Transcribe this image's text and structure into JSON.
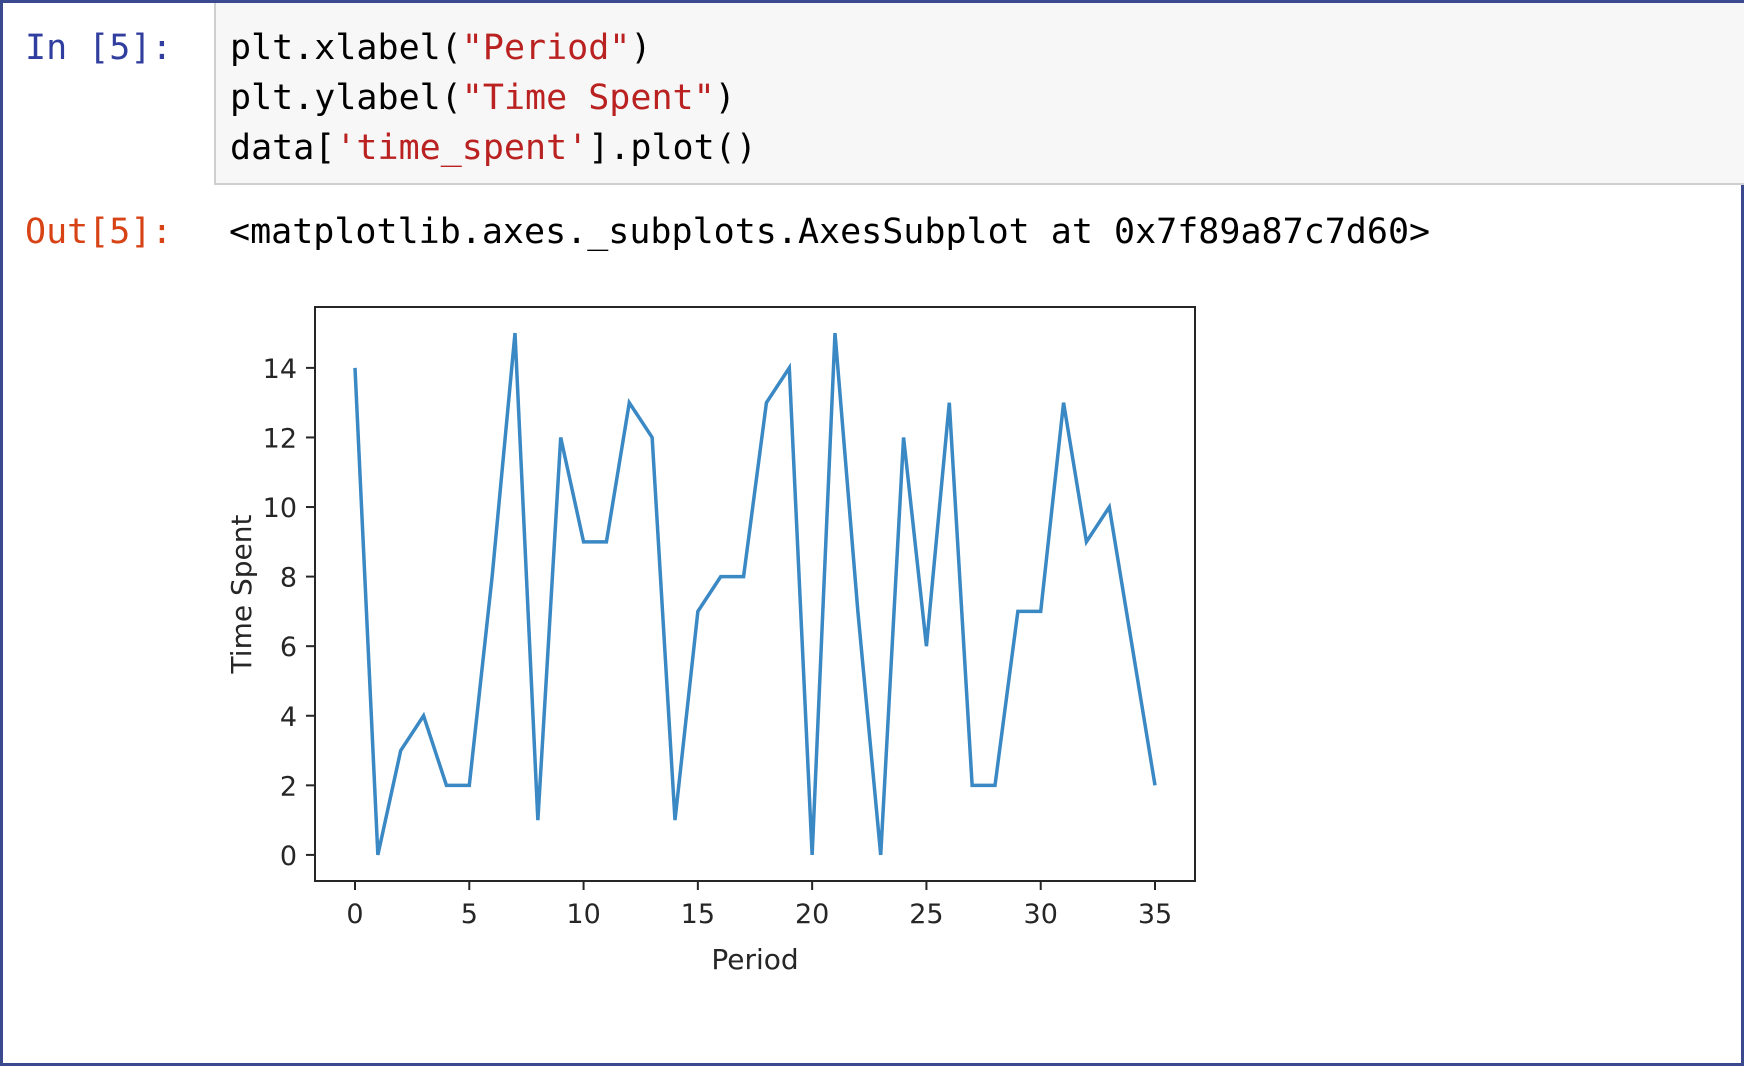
{
  "input_cell": {
    "prompt": "In [5]:",
    "code_lines": [
      [
        {
          "t": "plt.xlabel("
        },
        {
          "t": "\"Period\"",
          "s": true
        },
        {
          "t": ")"
        }
      ],
      [
        {
          "t": "plt.ylabel("
        },
        {
          "t": "\"Time Spent\"",
          "s": true
        },
        {
          "t": ")"
        }
      ],
      [
        {
          "t": "data["
        },
        {
          "t": "'time_spent'",
          "s": true
        },
        {
          "t": "].plot()"
        }
      ]
    ]
  },
  "output_cell": {
    "prompt": "Out[5]:",
    "text": "<matplotlib.axes._subplots.AxesSubplot at 0x7f89a87c7d60>"
  },
  "colors": {
    "line": "#3a88c4",
    "input_prompt": "#303f9f",
    "output_prompt": "#d84315",
    "string": "#ba2121",
    "frame_border": "#3b4a8f"
  },
  "chart_data": {
    "type": "line",
    "xlabel": "Period",
    "ylabel": "Time Spent",
    "xlim": [
      -1.75,
      36.75
    ],
    "ylim": [
      -0.75,
      15.75
    ],
    "xticks": [
      0,
      5,
      10,
      15,
      20,
      25,
      30,
      35
    ],
    "yticks": [
      0,
      2,
      4,
      6,
      8,
      10,
      12,
      14
    ],
    "grid": false,
    "x": [
      0,
      1,
      2,
      3,
      4,
      5,
      6,
      7,
      8,
      9,
      10,
      11,
      12,
      13,
      14,
      15,
      16,
      17,
      18,
      19,
      20,
      21,
      22,
      23,
      24,
      25,
      26,
      27,
      28,
      29,
      30,
      31,
      32,
      33,
      34,
      35
    ],
    "series": [
      {
        "values": [
          14,
          0,
          3,
          4,
          2,
          2,
          8,
          15,
          1,
          12,
          9,
          9,
          13,
          12,
          1,
          7,
          8,
          8,
          13,
          14,
          0,
          15,
          7,
          0,
          12,
          6,
          13,
          2,
          2,
          7,
          7,
          13,
          9,
          10,
          6,
          2
        ]
      }
    ]
  }
}
